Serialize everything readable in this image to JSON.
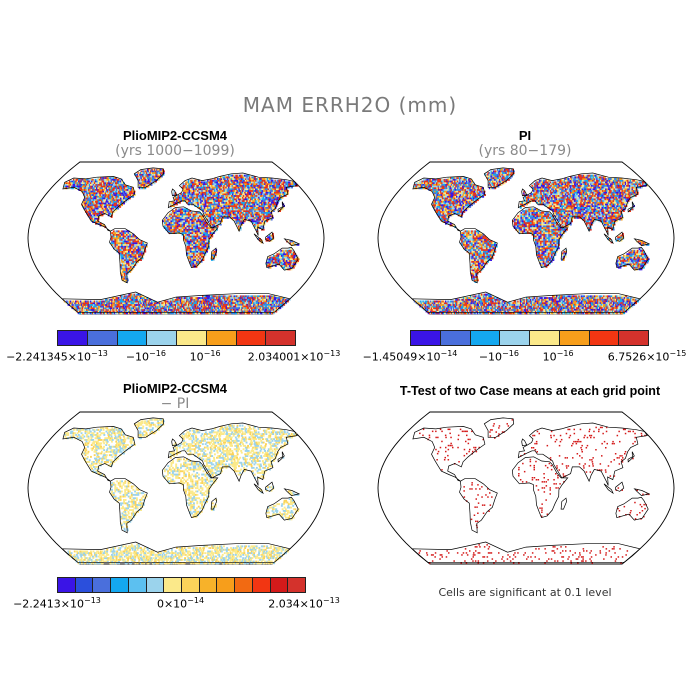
{
  "figure": {
    "title": "MAM ERRH2O (mm)"
  },
  "panels": [
    {
      "title": "PlioMIP2-CCSM4",
      "subtitle": "(yrs 1000−1099)",
      "style": "noise"
    },
    {
      "title": "PI",
      "subtitle": "(yrs 80−179)",
      "style": "noise"
    },
    {
      "title": "PlioMIP2-CCSM4",
      "subtitle": "− PI",
      "style": "diff"
    },
    {
      "title": "T-Test of two Case means at each grid point",
      "subtitle": "",
      "style": "ttest",
      "note": "Cells are significant at 0.1 level"
    }
  ],
  "colorbars": [
    {
      "colors": [
        "#3a14e6",
        "#4a6fdc",
        "#14a8f0",
        "#9bd3ec",
        "#fbe98a",
        "#f79e1b",
        "#f23612",
        "#d4322c"
      ],
      "ticks": [
        {
          "mant": "−2.241345×10",
          "exp": "−13"
        },
        {
          "mant": "−10",
          "exp": "−16"
        },
        {
          "mant": "10",
          "exp": "−16"
        },
        {
          "mant": "2.034001×10",
          "exp": "−13"
        }
      ]
    },
    {
      "colors": [
        "#3a14e6",
        "#4a6fdc",
        "#14a8f0",
        "#9bd3ec",
        "#fbe98a",
        "#f79e1b",
        "#f23612",
        "#d4322c"
      ],
      "ticks": [
        {
          "mant": "−1.45049×10",
          "exp": "−14"
        },
        {
          "mant": "−10",
          "exp": "−16"
        },
        {
          "mant": "10",
          "exp": "−16"
        },
        {
          "mant": "6.7526×10",
          "exp": "−15"
        }
      ]
    },
    {
      "colors": [
        "#3a14e6",
        "#2b4fdc",
        "#4a6fdc",
        "#14a8f0",
        "#5cc0f0",
        "#9bd3ec",
        "#fbe98a",
        "#fbd35a",
        "#f7b22a",
        "#f79e1b",
        "#f26a12",
        "#f23612",
        "#d41a1a",
        "#d4322c"
      ],
      "ticks": [
        {
          "mant": "−2.2413×10",
          "exp": "−13"
        },
        {
          "mant": "0×10",
          "exp": "−14"
        },
        {
          "mant": "2.034×10",
          "exp": "−13"
        }
      ]
    }
  ]
}
